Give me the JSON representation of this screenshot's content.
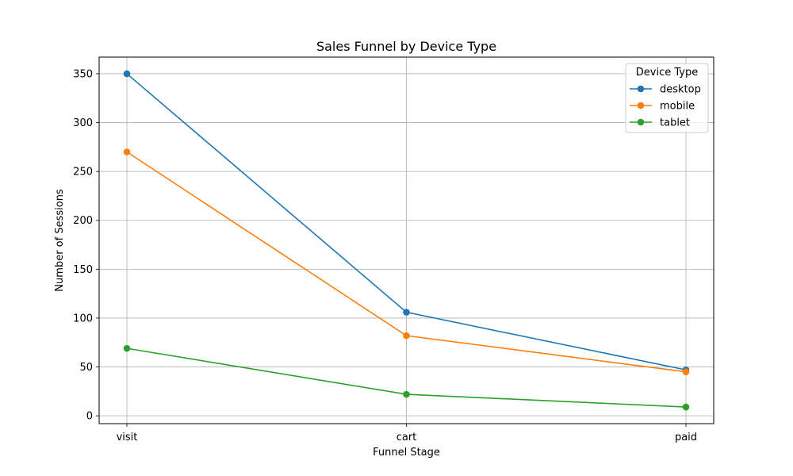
{
  "chart_data": {
    "type": "line",
    "title": "Sales Funnel by Device Type",
    "xlabel": "Funnel Stage",
    "ylabel": "Number of Sessions",
    "categories": [
      "visit",
      "cart",
      "paid"
    ],
    "ylim": [
      -8,
      367
    ],
    "yticks": [
      0,
      50,
      100,
      150,
      200,
      250,
      300,
      350
    ],
    "grid": true,
    "legend": {
      "title": "Device Type",
      "placement": "top-right"
    },
    "series": [
      {
        "name": "desktop",
        "color": "#1f77b4",
        "values": [
          350,
          106,
          47
        ]
      },
      {
        "name": "mobile",
        "color": "#ff7f0e",
        "values": [
          270,
          82,
          45
        ]
      },
      {
        "name": "tablet",
        "color": "#2ca02c",
        "values": [
          69,
          22,
          9
        ]
      }
    ]
  }
}
